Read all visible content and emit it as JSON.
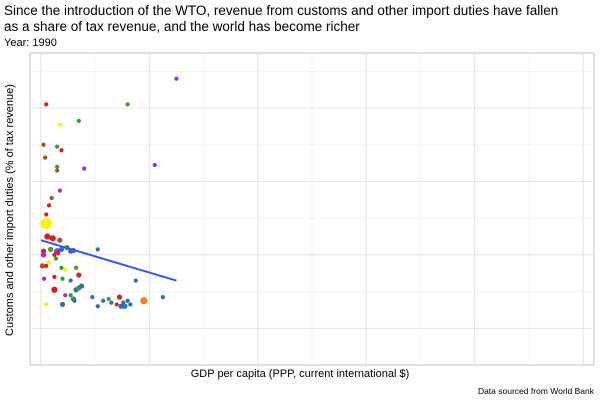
{
  "header": {
    "title_line1": "Since the introduction of the WTO, revenue from customs and other import duties have fallen",
    "title_line2": "as a share of tax revenue, and the world has become richer",
    "subtitle": "Year: 1990"
  },
  "footer": {
    "caption": "Data sourced from World Bank"
  },
  "chart_data": {
    "type": "scatter",
    "title": "Since the introduction of the WTO, revenue from customs and other import duties have fallen as a share of tax revenue, and the world has become richer",
    "subtitle": "Year: 1990",
    "xlabel": "GDP per capita (PPP, current international $)",
    "ylabel": "Customs and other import duties (% of tax revenue)",
    "xlim": [
      -2,
      102
    ],
    "ylim": [
      -10,
      75
    ],
    "grid": true,
    "legend": "none",
    "colors": {
      "yellow": "#f5f500",
      "red": "#e31a1c",
      "brown": "#a6501a",
      "green": "#33a02c",
      "purple": "#9932cc",
      "blue": "#2c6fb3",
      "orange": "#f57f20",
      "trend": "#3355ff"
    },
    "points": [
      {
        "x": 1.0,
        "y": 28.5,
        "size": 10,
        "color": "yellow"
      },
      {
        "x": 1.2,
        "y": 25.0,
        "size": 5,
        "color": "red"
      },
      {
        "x": 2.2,
        "y": 24.5,
        "size": 5,
        "color": "red"
      },
      {
        "x": 3.5,
        "y": 24.0,
        "size": 4,
        "color": "brown"
      },
      {
        "x": 0.5,
        "y": 21.0,
        "size": 4,
        "color": "red"
      },
      {
        "x": 1.8,
        "y": 21.5,
        "size": 4,
        "color": "green"
      },
      {
        "x": 3.0,
        "y": 21.0,
        "size": 5,
        "color": "purple"
      },
      {
        "x": 3.8,
        "y": 21.5,
        "size": 4,
        "color": "blue"
      },
      {
        "x": 4.8,
        "y": 22.0,
        "size": 4,
        "color": "green"
      },
      {
        "x": 5.5,
        "y": 21.0,
        "size": 4,
        "color": "purple"
      },
      {
        "x": 6.0,
        "y": 21.2,
        "size": 4,
        "color": "blue"
      },
      {
        "x": 10.5,
        "y": 21.5,
        "size": 3,
        "color": "blue"
      },
      {
        "x": 0.5,
        "y": 20.0,
        "size": 4,
        "color": "purple"
      },
      {
        "x": 2.5,
        "y": 20.0,
        "size": 3,
        "color": "red"
      },
      {
        "x": 3.2,
        "y": 20.5,
        "size": 3,
        "color": "red"
      },
      {
        "x": 1.5,
        "y": 18.0,
        "size": 3,
        "color": "yellow"
      },
      {
        "x": 2.8,
        "y": 19.0,
        "size": 3,
        "color": "green"
      },
      {
        "x": 0.3,
        "y": 17.0,
        "size": 4,
        "color": "brown"
      },
      {
        "x": 1.0,
        "y": 17.0,
        "size": 3,
        "color": "red"
      },
      {
        "x": 3.8,
        "y": 16.5,
        "size": 3,
        "color": "green"
      },
      {
        "x": 4.5,
        "y": 16.0,
        "size": 3,
        "color": "yellow"
      },
      {
        "x": 6.5,
        "y": 16.5,
        "size": 3,
        "color": "green"
      },
      {
        "x": 7.0,
        "y": 14.5,
        "size": 4,
        "color": "red"
      },
      {
        "x": 2.5,
        "y": 14.0,
        "size": 3,
        "color": "red"
      },
      {
        "x": 0.6,
        "y": 13.5,
        "size": 3,
        "color": "purple"
      },
      {
        "x": 4.0,
        "y": 13.5,
        "size": 3,
        "color": "green"
      },
      {
        "x": 5.5,
        "y": 13.0,
        "size": 3,
        "color": "blue"
      },
      {
        "x": 2.5,
        "y": 10.5,
        "size": 5,
        "color": "red"
      },
      {
        "x": 6.5,
        "y": 10.5,
        "size": 4,
        "color": "blue"
      },
      {
        "x": 7.0,
        "y": 11.0,
        "size": 4,
        "color": "green"
      },
      {
        "x": 7.5,
        "y": 11.5,
        "size": 4,
        "color": "blue"
      },
      {
        "x": 5.5,
        "y": 9.0,
        "size": 3,
        "color": "green"
      },
      {
        "x": 6.0,
        "y": 8.0,
        "size": 4,
        "color": "green"
      },
      {
        "x": 4.5,
        "y": 9.0,
        "size": 3,
        "color": "purple"
      },
      {
        "x": 4.0,
        "y": 6.5,
        "size": 4,
        "color": "blue"
      },
      {
        "x": 1.0,
        "y": 6.5,
        "size": 3,
        "color": "yellow"
      },
      {
        "x": 6.2,
        "y": 7.5,
        "size": 3,
        "color": "blue"
      },
      {
        "x": 9.5,
        "y": 8.5,
        "size": 3,
        "color": "blue"
      },
      {
        "x": 10.5,
        "y": 6.0,
        "size": 3,
        "color": "blue"
      },
      {
        "x": 11.5,
        "y": 7.5,
        "size": 3,
        "color": "blue"
      },
      {
        "x": 12.5,
        "y": 8.0,
        "size": 3,
        "color": "green"
      },
      {
        "x": 13.0,
        "y": 7.0,
        "size": 3,
        "color": "blue"
      },
      {
        "x": 14.0,
        "y": 6.5,
        "size": 3,
        "color": "red"
      },
      {
        "x": 14.5,
        "y": 8.5,
        "size": 4,
        "color": "red"
      },
      {
        "x": 14.8,
        "y": 6.0,
        "size": 4,
        "color": "blue"
      },
      {
        "x": 15.5,
        "y": 6.0,
        "size": 4,
        "color": "blue"
      },
      {
        "x": 15.2,
        "y": 7.0,
        "size": 3,
        "color": "blue"
      },
      {
        "x": 16.0,
        "y": 7.5,
        "size": 3,
        "color": "blue"
      },
      {
        "x": 16.5,
        "y": 6.5,
        "size": 3,
        "color": "blue"
      },
      {
        "x": 19.0,
        "y": 7.5,
        "size": 6,
        "color": "orange"
      },
      {
        "x": 22.5,
        "y": 8.5,
        "size": 3,
        "color": "blue"
      },
      {
        "x": 17.5,
        "y": 13.0,
        "size": 3,
        "color": "blue"
      },
      {
        "x": 1.0,
        "y": 61.0,
        "size": 3,
        "color": "red"
      },
      {
        "x": 16.0,
        "y": 61.0,
        "size": 3,
        "color": "green"
      },
      {
        "x": 25.0,
        "y": 68.0,
        "size": 3,
        "color": "purple"
      },
      {
        "x": 3.5,
        "y": 55.5,
        "size": 3,
        "color": "yellow"
      },
      {
        "x": 7.0,
        "y": 56.5,
        "size": 3,
        "color": "green"
      },
      {
        "x": 0.5,
        "y": 50.0,
        "size": 3,
        "color": "brown"
      },
      {
        "x": 3.0,
        "y": 49.5,
        "size": 3,
        "color": "green"
      },
      {
        "x": 3.8,
        "y": 48.5,
        "size": 3,
        "color": "red"
      },
      {
        "x": 0.8,
        "y": 46.5,
        "size": 3,
        "color": "brown"
      },
      {
        "x": 3.0,
        "y": 44.0,
        "size": 3,
        "color": "green"
      },
      {
        "x": 8.0,
        "y": 43.5,
        "size": 3,
        "color": "purple"
      },
      {
        "x": 21.0,
        "y": 44.5,
        "size": 3,
        "color": "purple"
      },
      {
        "x": 3.0,
        "y": 43.0,
        "size": 3,
        "color": "brown"
      },
      {
        "x": 3.5,
        "y": 37.5,
        "size": 3,
        "color": "purple"
      },
      {
        "x": 2.0,
        "y": 35.5,
        "size": 3,
        "color": "brown"
      },
      {
        "x": 1.5,
        "y": 33.5,
        "size": 3,
        "color": "red"
      },
      {
        "x": 1.0,
        "y": 31.0,
        "size": 3,
        "color": "red"
      }
    ],
    "trend": {
      "x": [
        0,
        25
      ],
      "y": [
        24.0,
        13.0
      ]
    }
  }
}
